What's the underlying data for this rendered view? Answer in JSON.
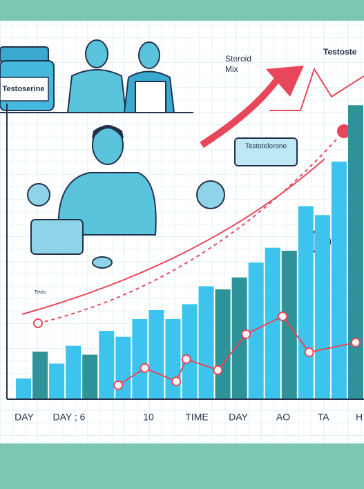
{
  "chart_data": {
    "type": "bar",
    "categories": [
      null,
      null,
      null,
      null,
      null,
      null,
      null,
      null,
      null,
      null,
      null,
      null,
      null,
      null,
      null,
      null,
      null,
      null,
      null,
      null,
      null
    ],
    "values": [
      7,
      16,
      12,
      18,
      15,
      23,
      21,
      27,
      30,
      27,
      32,
      38,
      37,
      41,
      46,
      51,
      50,
      65,
      62,
      80,
      99
    ],
    "colors": [
      "#3cc4ee",
      "#2e9299",
      "#3cc4ee",
      "#3cc4ee",
      "#2e9299",
      "#3cc4ee",
      "#3cc4ee",
      "#3cc4ee",
      "#3cc4ee",
      "#3cc4ee",
      "#3cc4ee",
      "#3cc4ee",
      "#2e9299",
      "#2e9299",
      "#3cc4ee",
      "#3cc4ee",
      "#2e9299",
      "#3cc4ee",
      "#3cc4ee",
      "#3cc4ee",
      "#2e9299"
    ],
    "ylim": [
      0,
      100
    ],
    "xlim": [
      0,
      21
    ],
    "line": {
      "color": "#e8465a",
      "x": [
        6.2,
        7.8,
        9.7,
        10.3,
        12.2,
        13.9,
        16.1,
        17.7,
        20.5
      ],
      "values": [
        4.7,
        10.5,
        6,
        13.5,
        9.8,
        21.9,
        27.9,
        15.8,
        19.1
      ]
    },
    "x_labels": [
      "DAY",
      "DAY ; 6",
      "10",
      "TIME",
      "DAY",
      "AO",
      "TA",
      "H"
    ],
    "annotations": [
      "Testoserine",
      "Steroid",
      "Mix",
      "Testoste",
      "Testotelorono",
      "Tetas"
    ]
  }
}
